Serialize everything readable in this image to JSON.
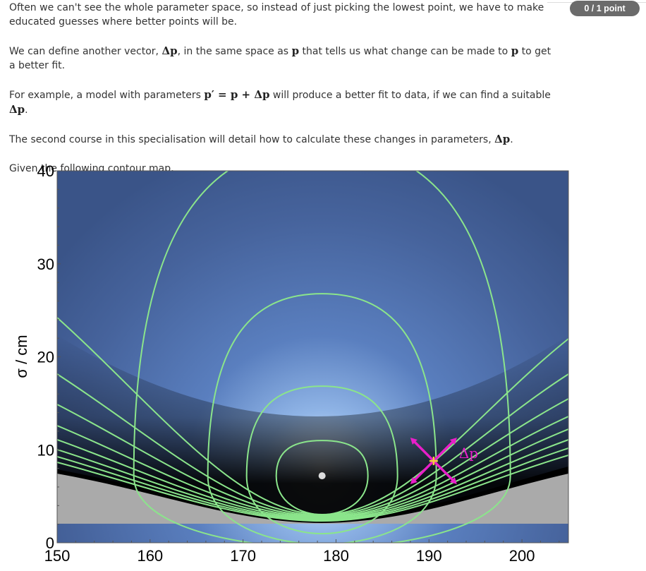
{
  "grade_badge": "0 / 1 point",
  "paragraphs": {
    "p1": "Often we can't see the whole parameter space, so instead of just picking the lowest point, we have to make educated guesses where better points will be.",
    "p2_a": "We can define another vector, ",
    "p2_b": ", in the same space as ",
    "p2_c": " that tells us what change can be made to ",
    "p2_d": " to get a better fit.",
    "p3_a": "For example, a model with parameters ",
    "p3_b": " will produce a better fit to data, if we can find a suitable ",
    "p3_c": ".",
    "p4_a": "The second course in this specialisation will detail how to calculate these changes in parameters, ",
    "p4_b": ".",
    "p5": "Given the following contour map,"
  },
  "math": {
    "delta_p": "Δp",
    "p": "p",
    "p_prime_eq": "p′ = p + Δp"
  },
  "chart_data": {
    "type": "contour",
    "xlabel": "",
    "ylabel": "σ / cm",
    "xlim": [
      150,
      205
    ],
    "ylim": [
      0,
      40
    ],
    "x_ticks": [
      "150",
      "160",
      "170",
      "180",
      "190",
      "200"
    ],
    "y_ticks": [
      "0",
      "10",
      "20",
      "30",
      "40"
    ],
    "minimum": {
      "x": 178.5,
      "y": 7.2
    },
    "marked_point": {
      "x": 190.5,
      "y": 8.8,
      "label": "Δp"
    },
    "colors": {
      "contour": "#8be58b",
      "marker": "#e81fc9",
      "point": "#f0d040",
      "invalid_region": "#aaaaaa",
      "bg_center": "#eef6ff",
      "bg_mid": "#7aa4dc",
      "bg_outer": "#44639a"
    }
  }
}
